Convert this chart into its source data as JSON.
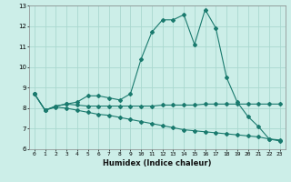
{
  "xlabel": "Humidex (Indice chaleur)",
  "bg_color": "#cceee8",
  "grid_color": "#aad8d0",
  "line_color": "#1a7a6e",
  "xlim": [
    -0.5,
    23.5
  ],
  "ylim": [
    6,
    13
  ],
  "yticks": [
    6,
    7,
    8,
    9,
    10,
    11,
    12,
    13
  ],
  "xticks": [
    0,
    1,
    2,
    3,
    4,
    5,
    6,
    7,
    8,
    9,
    10,
    11,
    12,
    13,
    14,
    15,
    16,
    17,
    18,
    19,
    20,
    21,
    22,
    23
  ],
  "line1_x": [
    0,
    1,
    2,
    3,
    4,
    5,
    6,
    7,
    8,
    9,
    10,
    11,
    12,
    13,
    14,
    15,
    16,
    17,
    18,
    19,
    20,
    21,
    22,
    23
  ],
  "line1_y": [
    8.7,
    7.9,
    8.1,
    8.2,
    8.3,
    8.6,
    8.6,
    8.5,
    8.4,
    8.7,
    10.4,
    11.7,
    12.3,
    12.3,
    12.55,
    11.1,
    12.8,
    11.9,
    9.5,
    8.3,
    7.6,
    7.1,
    6.5,
    6.4
  ],
  "line2_x": [
    0,
    1,
    2,
    3,
    4,
    5,
    6,
    7,
    8,
    9,
    10,
    11,
    12,
    13,
    14,
    15,
    16,
    17,
    18,
    19,
    20,
    21,
    22,
    23
  ],
  "line2_y": [
    8.7,
    7.9,
    8.1,
    8.2,
    8.15,
    8.1,
    8.1,
    8.1,
    8.1,
    8.1,
    8.1,
    8.1,
    8.15,
    8.15,
    8.15,
    8.15,
    8.2,
    8.2,
    8.2,
    8.2,
    8.2,
    8.2,
    8.2,
    8.2
  ],
  "line3_x": [
    0,
    1,
    2,
    3,
    4,
    5,
    6,
    7,
    8,
    9,
    10,
    11,
    12,
    13,
    14,
    15,
    16,
    17,
    18,
    19,
    20,
    21,
    22,
    23
  ],
  "line3_y": [
    8.7,
    7.9,
    8.05,
    8.0,
    7.9,
    7.8,
    7.7,
    7.65,
    7.55,
    7.45,
    7.35,
    7.25,
    7.15,
    7.05,
    6.95,
    6.9,
    6.85,
    6.8,
    6.75,
    6.7,
    6.65,
    6.6,
    6.5,
    6.45
  ]
}
